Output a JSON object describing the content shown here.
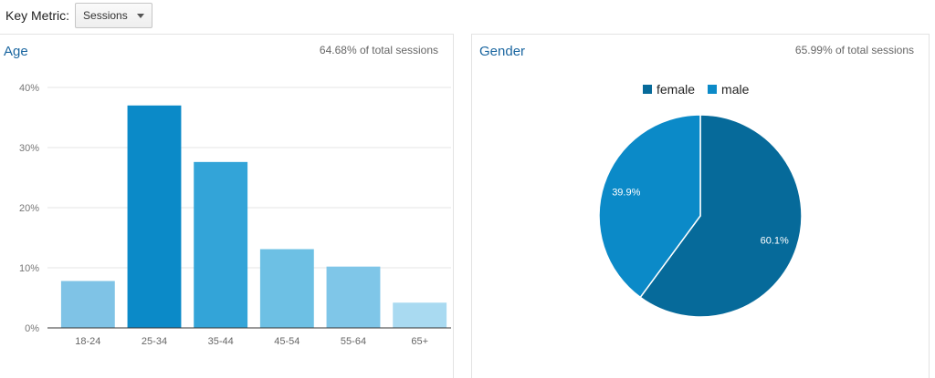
{
  "toolbar": {
    "key_metric_label": "Key Metric:",
    "selected_metric": "Sessions"
  },
  "age_panel": {
    "title": "Age",
    "summary": "64.68% of total sessions"
  },
  "gender_panel": {
    "title": "Gender",
    "summary": "65.99% of total sessions"
  },
  "chart_data": [
    {
      "type": "bar",
      "title": "Age",
      "categories": [
        "18-24",
        "25-34",
        "35-44",
        "45-54",
        "55-64",
        "65+"
      ],
      "values": [
        7.8,
        37.0,
        27.6,
        13.1,
        10.2,
        4.2
      ],
      "y_ticks": [
        "0%",
        "10%",
        "20%",
        "30%",
        "40%"
      ],
      "ylim": [
        0,
        40
      ],
      "grid": true,
      "colors": [
        "#7fc3e6",
        "#0b8ac8",
        "#33a4d8",
        "#6dc0e4",
        "#7fc6e8",
        "#a9daf1"
      ]
    },
    {
      "type": "pie",
      "title": "Gender",
      "slices": [
        {
          "label": "female",
          "value": 60.1,
          "value_label": "60.1%",
          "color": "#066a9a"
        },
        {
          "label": "male",
          "value": 39.9,
          "value_label": "39.9%",
          "color": "#0b8ac8"
        }
      ],
      "legend_position": "top"
    }
  ]
}
